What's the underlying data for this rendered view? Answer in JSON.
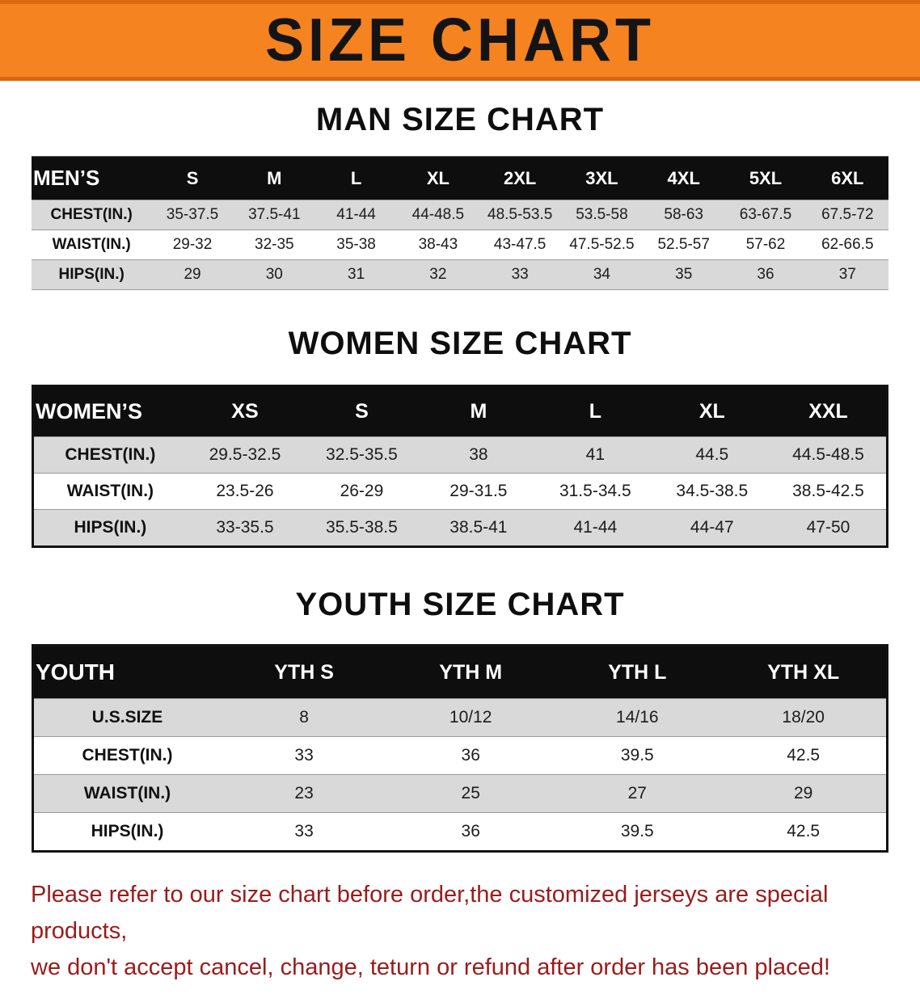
{
  "banner": {
    "title": "SIZE CHART",
    "background_color": "#F5831F",
    "text_color": "#141414"
  },
  "sections": [
    {
      "id": "men",
      "heading": "MAN SIZE CHART",
      "table": {
        "header": [
          "MEN’S",
          "S",
          "M",
          "L",
          "XL",
          "2XL",
          "3XL",
          "4XL",
          "5XL",
          "6XL"
        ],
        "rows": [
          [
            "CHEST(IN.)",
            "35-37.5",
            "37.5-41",
            "41-44",
            "44-48.5",
            "48.5-53.5",
            "53.5-58",
            "58-63",
            "63-67.5",
            "67.5-72"
          ],
          [
            "WAIST(IN.)",
            "29-32",
            "32-35",
            "35-38",
            "38-43",
            "43-47.5",
            "47.5-52.5",
            "52.5-57",
            "57-62",
            "62-66.5"
          ],
          [
            "HIPS(IN.)",
            "29",
            "30",
            "31",
            "32",
            "33",
            "34",
            "35",
            "36",
            "37"
          ]
        ]
      }
    },
    {
      "id": "women",
      "heading": "WOMEN SIZE CHART",
      "table": {
        "header": [
          "WOMEN’S",
          "XS",
          "S",
          "M",
          "L",
          "XL",
          "XXL"
        ],
        "rows": [
          [
            "CHEST(IN.)",
            "29.5-32.5",
            "32.5-35.5",
            "38",
            "41",
            "44.5",
            "44.5-48.5"
          ],
          [
            "WAIST(IN.)",
            "23.5-26",
            "26-29",
            "29-31.5",
            "31.5-34.5",
            "34.5-38.5",
            "38.5-42.5"
          ],
          [
            "HIPS(IN.)",
            "33-35.5",
            "35.5-38.5",
            "38.5-41",
            "41-44",
            "44-47",
            "47-50"
          ]
        ]
      }
    },
    {
      "id": "youth",
      "heading": "YOUTH SIZE CHART",
      "table": {
        "header": [
          "YOUTH",
          "YTH S",
          "YTH M",
          "YTH L",
          "YTH XL"
        ],
        "rows": [
          [
            "U.S.SIZE",
            "8",
            "10/12",
            "14/16",
            "18/20"
          ],
          [
            "CHEST(IN.)",
            "33",
            "36",
            "39.5",
            "42.5"
          ],
          [
            "WAIST(IN.)",
            "23",
            "25",
            "27",
            "29"
          ],
          [
            "HIPS(IN.)",
            "33",
            "36",
            "39.5",
            "42.5"
          ]
        ]
      }
    }
  ],
  "footer": {
    "line1": "Please refer to our size chart before order,the customized jerseys are special products,",
    "line2": "we don't accept cancel, change, teturn or refund after order has been placed!",
    "text_color": "#9B1B1B"
  },
  "row_stripe_color": "#d9d9d9",
  "table_header_color": "#0e0e0e"
}
